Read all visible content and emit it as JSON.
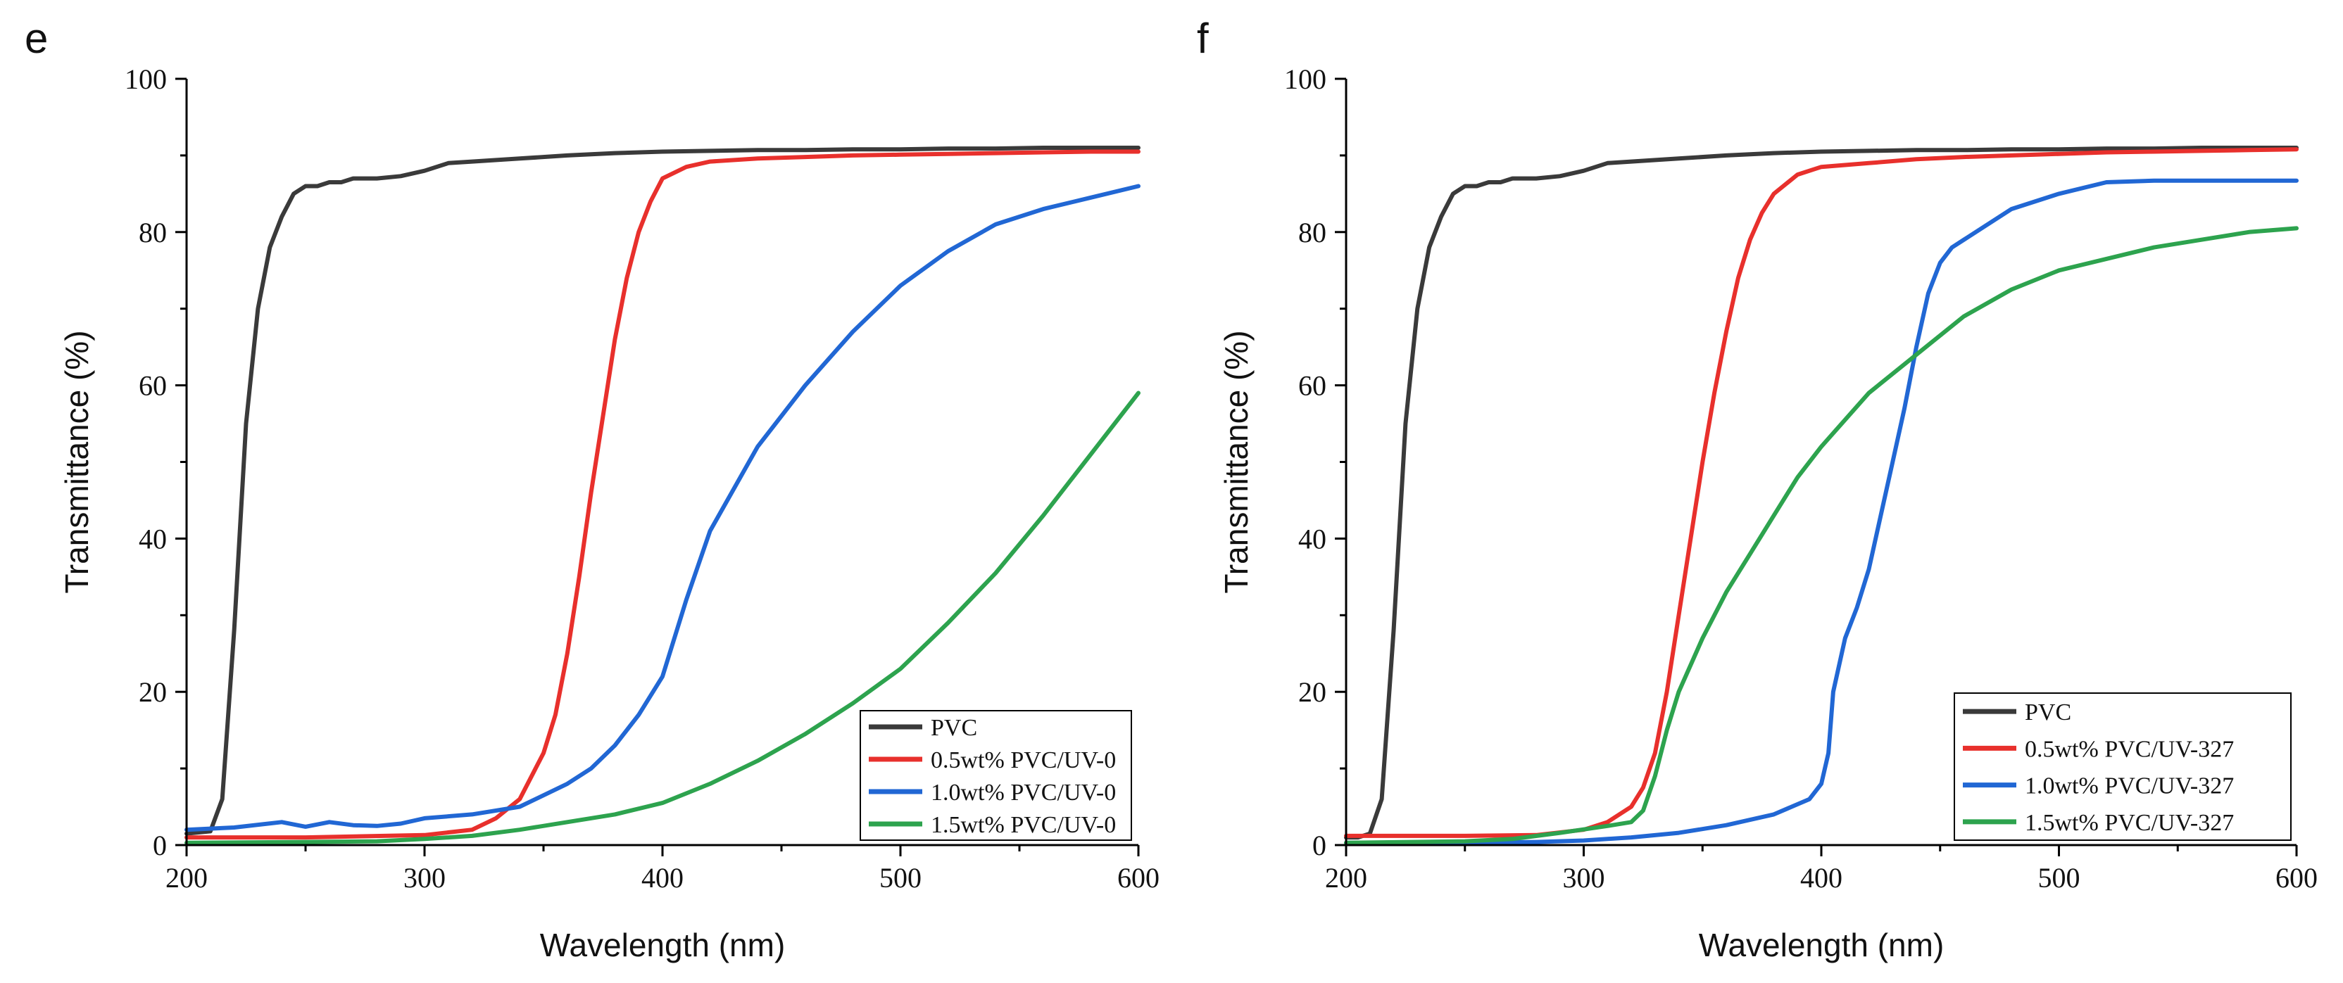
{
  "chart_data": [
    {
      "type": "line",
      "panel_label": "e",
      "xlabel": "Wavelength (nm)",
      "ylabel": "Transmittance (%)",
      "xlim": [
        200,
        600
      ],
      "ylim": [
        0,
        100
      ],
      "xticks": [
        200,
        300,
        400,
        500,
        600
      ],
      "yticks": [
        0,
        20,
        40,
        60,
        80,
        100
      ],
      "legend_position": "bottom-right",
      "series": [
        {
          "name": "PVC",
          "color": "#3a3a3a",
          "x": [
            200,
            210,
            215,
            220,
            225,
            230,
            235,
            240,
            245,
            250,
            255,
            260,
            265,
            270,
            275,
            280,
            290,
            300,
            310,
            320,
            340,
            360,
            380,
            400,
            420,
            440,
            460,
            480,
            500,
            520,
            540,
            560,
            580,
            600
          ],
          "y": [
            1.5,
            1.8,
            6,
            28,
            55,
            70,
            78,
            82,
            85,
            86,
            86,
            86.5,
            86.5,
            87,
            87,
            87,
            87.3,
            88,
            89,
            89.2,
            89.6,
            90,
            90.3,
            90.5,
            90.6,
            90.7,
            90.7,
            90.8,
            90.8,
            90.9,
            90.9,
            91,
            91,
            91
          ]
        },
        {
          "name": "0.5wt% PVC/UV-0",
          "color": "#e8302c",
          "x": [
            200,
            250,
            300,
            320,
            330,
            340,
            350,
            355,
            360,
            365,
            370,
            375,
            380,
            385,
            390,
            395,
            400,
            410,
            420,
            440,
            460,
            480,
            500,
            520,
            540,
            560,
            580,
            600
          ],
          "y": [
            1,
            1,
            1.3,
            2,
            3.5,
            6,
            12,
            17,
            25,
            35,
            46,
            56,
            66,
            74,
            80,
            84,
            87,
            88.5,
            89.2,
            89.6,
            89.8,
            90,
            90.1,
            90.2,
            90.3,
            90.4,
            90.5,
            90.5
          ]
        },
        {
          "name": "1.0wt% PVC/UV-0",
          "color": "#2167d4",
          "x": [
            200,
            220,
            240,
            250,
            260,
            270,
            280,
            290,
            300,
            320,
            340,
            360,
            370,
            380,
            390,
            400,
            410,
            420,
            440,
            460,
            480,
            500,
            520,
            540,
            560,
            580,
            600
          ],
          "y": [
            2,
            2.3,
            3,
            2.4,
            3,
            2.6,
            2.5,
            2.8,
            3.5,
            4,
            5,
            8,
            10,
            13,
            17,
            22,
            32,
            41,
            52,
            60,
            67,
            73,
            77.5,
            81,
            83,
            84.5,
            86
          ]
        },
        {
          "name": "1.5wt% PVC/UV-0",
          "color": "#2da34e",
          "x": [
            200,
            250,
            280,
            300,
            320,
            340,
            360,
            380,
            400,
            420,
            440,
            460,
            480,
            500,
            520,
            540,
            560,
            580,
            600
          ],
          "y": [
            0.3,
            0.4,
            0.5,
            0.8,
            1.2,
            2,
            3,
            4,
            5.5,
            8,
            11,
            14.5,
            18.5,
            23,
            29,
            35.5,
            43,
            51,
            59
          ]
        }
      ]
    },
    {
      "type": "line",
      "panel_label": "f",
      "xlabel": "Wavelength (nm)",
      "ylabel": "Transmittance (%)",
      "xlim": [
        200,
        600
      ],
      "ylim": [
        0,
        100
      ],
      "xticks": [
        200,
        300,
        400,
        500,
        600
      ],
      "yticks": [
        0,
        20,
        40,
        60,
        80,
        100
      ],
      "legend_position": "bottom-right",
      "series": [
        {
          "name": "PVC",
          "color": "#3a3a3a",
          "x": [
            200,
            205,
            210,
            215,
            220,
            225,
            230,
            235,
            240,
            245,
            250,
            255,
            260,
            265,
            270,
            275,
            280,
            290,
            300,
            310,
            320,
            340,
            360,
            380,
            400,
            420,
            440,
            460,
            480,
            500,
            520,
            540,
            560,
            580,
            600
          ],
          "y": [
            1,
            1,
            1.5,
            6,
            28,
            55,
            70,
            78,
            82,
            85,
            86,
            86,
            86.5,
            86.5,
            87,
            87,
            87,
            87.3,
            88,
            89,
            89.2,
            89.6,
            90,
            90.3,
            90.5,
            90.6,
            90.7,
            90.7,
            90.8,
            90.8,
            90.9,
            90.9,
            91,
            91,
            91
          ]
        },
        {
          "name": "0.5wt% PVC/UV-327",
          "color": "#e8302c",
          "x": [
            200,
            250,
            280,
            300,
            310,
            320,
            325,
            330,
            335,
            340,
            345,
            350,
            355,
            360,
            365,
            370,
            375,
            380,
            390,
            400,
            420,
            440,
            460,
            480,
            500,
            520,
            540,
            560,
            580,
            600
          ],
          "y": [
            1.2,
            1.2,
            1.3,
            2,
            3,
            5,
            7.5,
            12,
            20,
            30,
            40,
            50,
            59,
            67,
            74,
            79,
            82.5,
            85,
            87.5,
            88.5,
            89,
            89.5,
            89.8,
            90,
            90.2,
            90.4,
            90.5,
            90.6,
            90.7,
            90.8
          ]
        },
        {
          "name": "1.0wt% PVC/UV-327",
          "color": "#2167d4",
          "x": [
            200,
            250,
            280,
            300,
            320,
            340,
            360,
            380,
            395,
            400,
            403,
            405,
            410,
            415,
            420,
            425,
            430,
            435,
            440,
            445,
            450,
            455,
            460,
            470,
            480,
            500,
            520,
            540,
            560,
            580,
            600
          ],
          "y": [
            0.3,
            0.3,
            0.4,
            0.6,
            1,
            1.6,
            2.6,
            4,
            6,
            8,
            12,
            20,
            27,
            31,
            36,
            43,
            50,
            57,
            65,
            72,
            76,
            78,
            79,
            81,
            83,
            85,
            86.5,
            86.7,
            86.7,
            86.7,
            86.7
          ]
        },
        {
          "name": "1.5wt% PVC/UV-327",
          "color": "#2da34e",
          "x": [
            200,
            250,
            270,
            290,
            310,
            320,
            325,
            330,
            335,
            340,
            350,
            360,
            370,
            380,
            390,
            400,
            420,
            440,
            460,
            480,
            500,
            520,
            540,
            560,
            580,
            600
          ],
          "y": [
            0.3,
            0.5,
            0.8,
            1.6,
            2.5,
            3,
            4.5,
            9,
            15,
            20,
            27,
            33,
            38,
            43,
            48,
            52,
            59,
            64,
            69,
            72.5,
            75,
            76.5,
            78,
            79,
            80,
            80.5
          ]
        }
      ]
    }
  ]
}
